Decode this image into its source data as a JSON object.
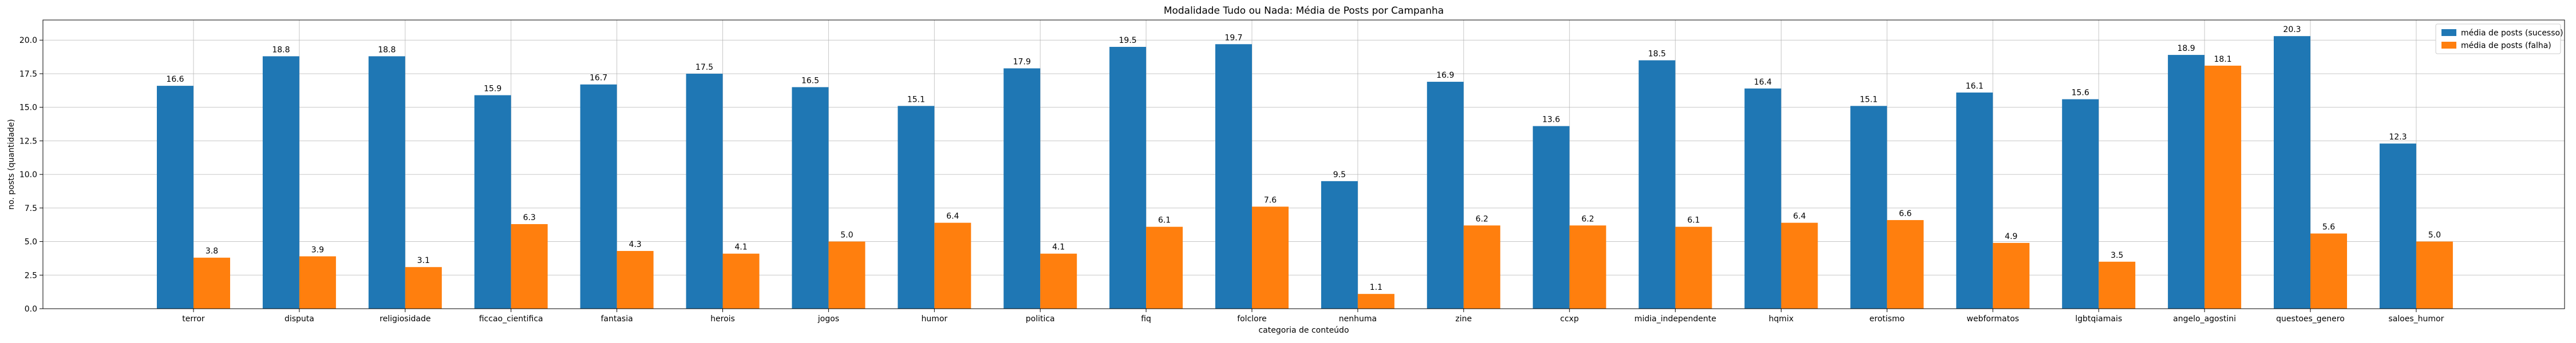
{
  "chart_data": {
    "type": "bar",
    "title": "Modalidade Tudo ou Nada: Média de Posts por Campanha",
    "xlabel": "categoria de conteúdo",
    "ylabel": "no. posts (quantidade)",
    "ylim": [
      0,
      21.5
    ],
    "yticks": [
      0.0,
      2.5,
      5.0,
      7.5,
      10.0,
      12.5,
      15.0,
      17.5,
      20.0
    ],
    "ytick_labels": [
      "0.0",
      "2.5",
      "5.0",
      "7.5",
      "10.0",
      "12.5",
      "15.0",
      "17.5",
      "20.0"
    ],
    "grid": true,
    "legend_position": "top-right",
    "categories": [
      "terror",
      "disputa",
      "religiosidade",
      "ficcao_cientifica",
      "fantasia",
      "herois",
      "jogos",
      "humor",
      "politica",
      "fiq",
      "folclore",
      "nenhuma",
      "zine",
      "ccxp",
      "midia_independente",
      "hqmix",
      "erotismo",
      "webformatos",
      "lgbtqiamais",
      "angelo_agostini",
      "questoes_genero",
      "saloes_humor"
    ],
    "series": [
      {
        "name": "média de posts (sucesso)",
        "color": "#1f77b4",
        "values": [
          16.6,
          18.8,
          18.8,
          15.9,
          16.7,
          17.5,
          16.5,
          15.1,
          17.9,
          19.5,
          19.7,
          9.5,
          16.9,
          13.6,
          18.5,
          16.4,
          15.1,
          16.1,
          15.6,
          18.9,
          20.3,
          12.3
        ],
        "labels": [
          "16.6",
          "18.8",
          "18.8",
          "15.9",
          "16.7",
          "17.5",
          "16.5",
          "15.1",
          "17.9",
          "19.5",
          "19.7",
          "9.5",
          "16.9",
          "13.6",
          "18.5",
          "16.4",
          "15.1",
          "16.1",
          "15.6",
          "18.9",
          "20.3",
          "12.3"
        ]
      },
      {
        "name": "média de posts (falha)",
        "color": "#ff7f0e",
        "values": [
          3.8,
          3.9,
          3.1,
          6.3,
          4.3,
          4.1,
          5.0,
          6.4,
          4.1,
          6.1,
          7.6,
          1.1,
          6.2,
          6.2,
          6.1,
          6.4,
          6.6,
          4.9,
          3.5,
          18.1,
          5.6,
          5.0
        ],
        "labels": [
          "3.8",
          "3.9",
          "3.1",
          "6.3",
          "4.3",
          "4.1",
          "5.0",
          "6.4",
          "4.1",
          "6.1",
          "7.6",
          "1.1",
          "6.2",
          "6.2",
          "6.1",
          "6.4",
          "6.6",
          "4.9",
          "3.5",
          "18.1",
          "5.6",
          "5.0"
        ]
      }
    ]
  }
}
